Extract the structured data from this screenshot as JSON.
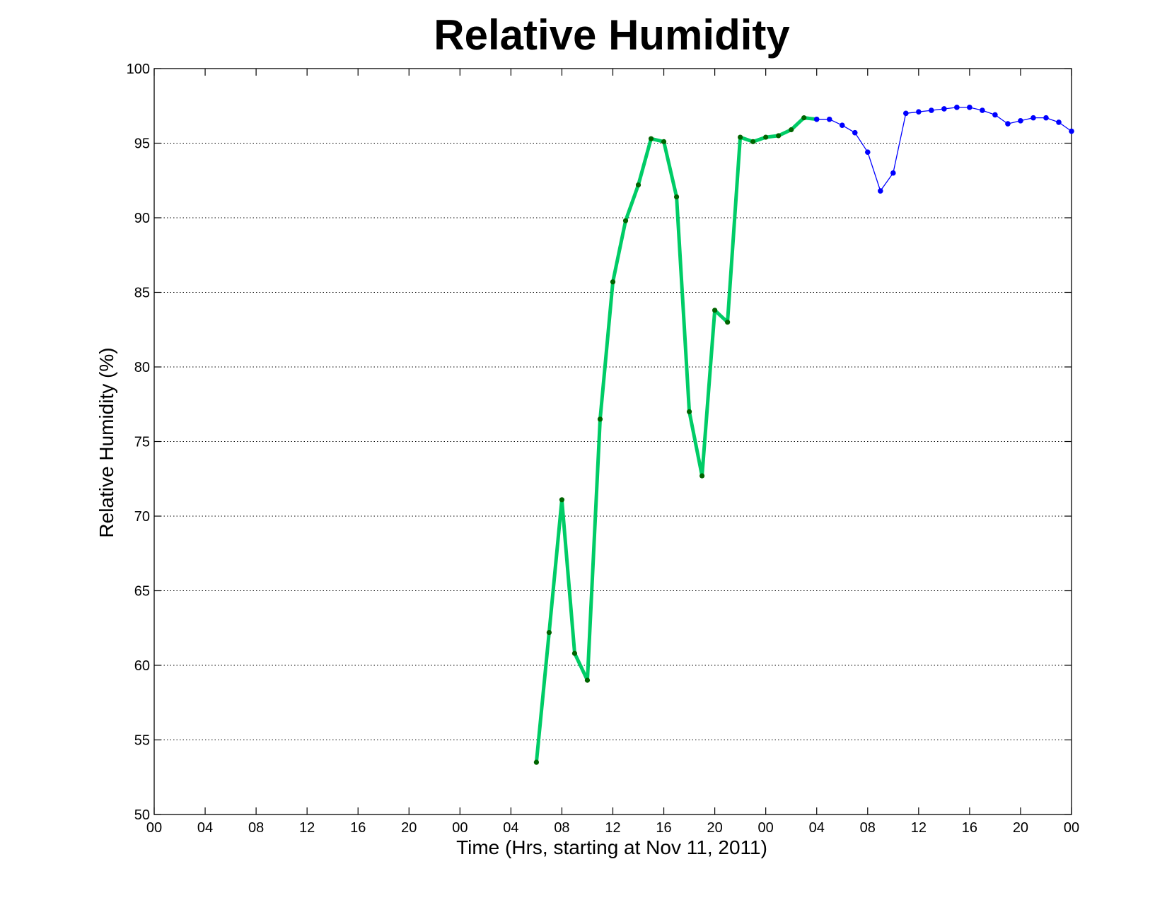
{
  "chart_data": {
    "type": "line",
    "title": "Relative Humidity",
    "xlabel": "Time (Hrs, starting at Nov 11, 2011)",
    "ylabel": "Relative Humidity (%)",
    "ylim": [
      50,
      100
    ],
    "yticks": [
      50,
      55,
      60,
      65,
      70,
      75,
      80,
      85,
      90,
      95,
      100
    ],
    "xlim": [
      0,
      72
    ],
    "xticks": [
      0,
      4,
      8,
      12,
      16,
      20,
      24,
      28,
      32,
      36,
      40,
      44,
      48,
      52,
      56,
      60,
      64,
      68,
      72
    ],
    "xtick_labels": [
      "00",
      "04",
      "08",
      "12",
      "16",
      "20",
      "00",
      "04",
      "08",
      "12",
      "16",
      "20",
      "00",
      "04",
      "08",
      "12",
      "16",
      "20",
      "00"
    ],
    "grid": "horizontal-dotted",
    "series": [
      {
        "color": "#00cc66",
        "marker_color": "#006400",
        "x": [
          30,
          31,
          32,
          33,
          34,
          35,
          36,
          37,
          38,
          39,
          40,
          41,
          42,
          43,
          44,
          45,
          46,
          47,
          48,
          49,
          50,
          51,
          52
        ],
        "y": [
          53.5,
          62.2,
          71.1,
          60.8,
          59.0,
          76.5,
          85.7,
          89.8,
          92.2,
          95.3,
          95.1,
          91.4,
          77.0,
          72.7,
          83.8,
          83.0,
          95.4,
          95.1,
          95.4,
          95.5,
          95.9,
          96.7,
          96.6
        ]
      },
      {
        "color": "#0000ff",
        "marker_color": "#0000ff",
        "x": [
          52,
          53,
          54,
          55,
          56,
          57,
          58,
          59,
          60,
          61,
          62,
          63,
          64,
          65,
          66,
          67,
          68,
          69,
          70,
          71,
          72
        ],
        "y": [
          96.6,
          96.6,
          96.2,
          95.7,
          94.4,
          91.8,
          93.0,
          97.0,
          97.1,
          97.2,
          97.3,
          97.4,
          97.4,
          97.2,
          96.9,
          96.3,
          96.5,
          96.7,
          96.7,
          96.4,
          95.8
        ]
      }
    ]
  }
}
